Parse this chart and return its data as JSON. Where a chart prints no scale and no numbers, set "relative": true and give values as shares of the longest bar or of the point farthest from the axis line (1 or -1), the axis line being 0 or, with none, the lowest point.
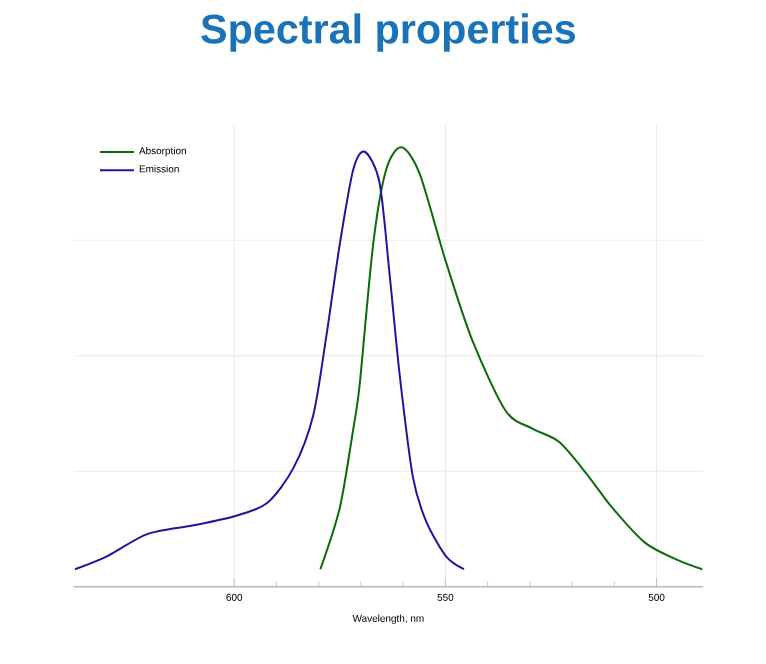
{
  "chart_data": {
    "type": "line",
    "title": "Spectral properties",
    "xlabel": "Wavelength, nm",
    "relative": true,
    "xlim": [
      638,
      489
    ],
    "xticks": [
      600,
      550,
      500
    ],
    "grid": true,
    "legend": "top left",
    "marker": "none",
    "line_style": "solid",
    "series": [
      {
        "name": "Absorption",
        "color": "#0b6b0b",
        "x": [
          579.6,
          575.0,
          571.8,
          570.3,
          567.1,
          564.0,
          560.4,
          556.1,
          549.9,
          543.6,
          535.7,
          529.4,
          523.1,
          516.8,
          510.5,
          502.7,
          494.8,
          489.2
        ],
        "values": [
          0.04,
          0.18,
          0.36,
          0.46,
          0.78,
          0.95,
          1.0,
          0.94,
          0.74,
          0.56,
          0.4,
          0.36,
          0.33,
          0.26,
          0.18,
          0.1,
          0.06,
          0.04
        ]
      },
      {
        "name": "Emission",
        "color": "#2a10a0",
        "x": [
          637.7,
          630.0,
          620.6,
          609.6,
          600.2,
          592.3,
          586.0,
          581.3,
          578.2,
          575.0,
          571.8,
          569.1,
          565.6,
          563.2,
          560.8,
          557.7,
          554.6,
          549.9,
          545.6
        ],
        "values": [
          0.04,
          0.07,
          0.12,
          0.14,
          0.16,
          0.19,
          0.27,
          0.39,
          0.57,
          0.78,
          0.95,
          0.99,
          0.92,
          0.71,
          0.48,
          0.25,
          0.15,
          0.07,
          0.04
        ]
      }
    ]
  }
}
